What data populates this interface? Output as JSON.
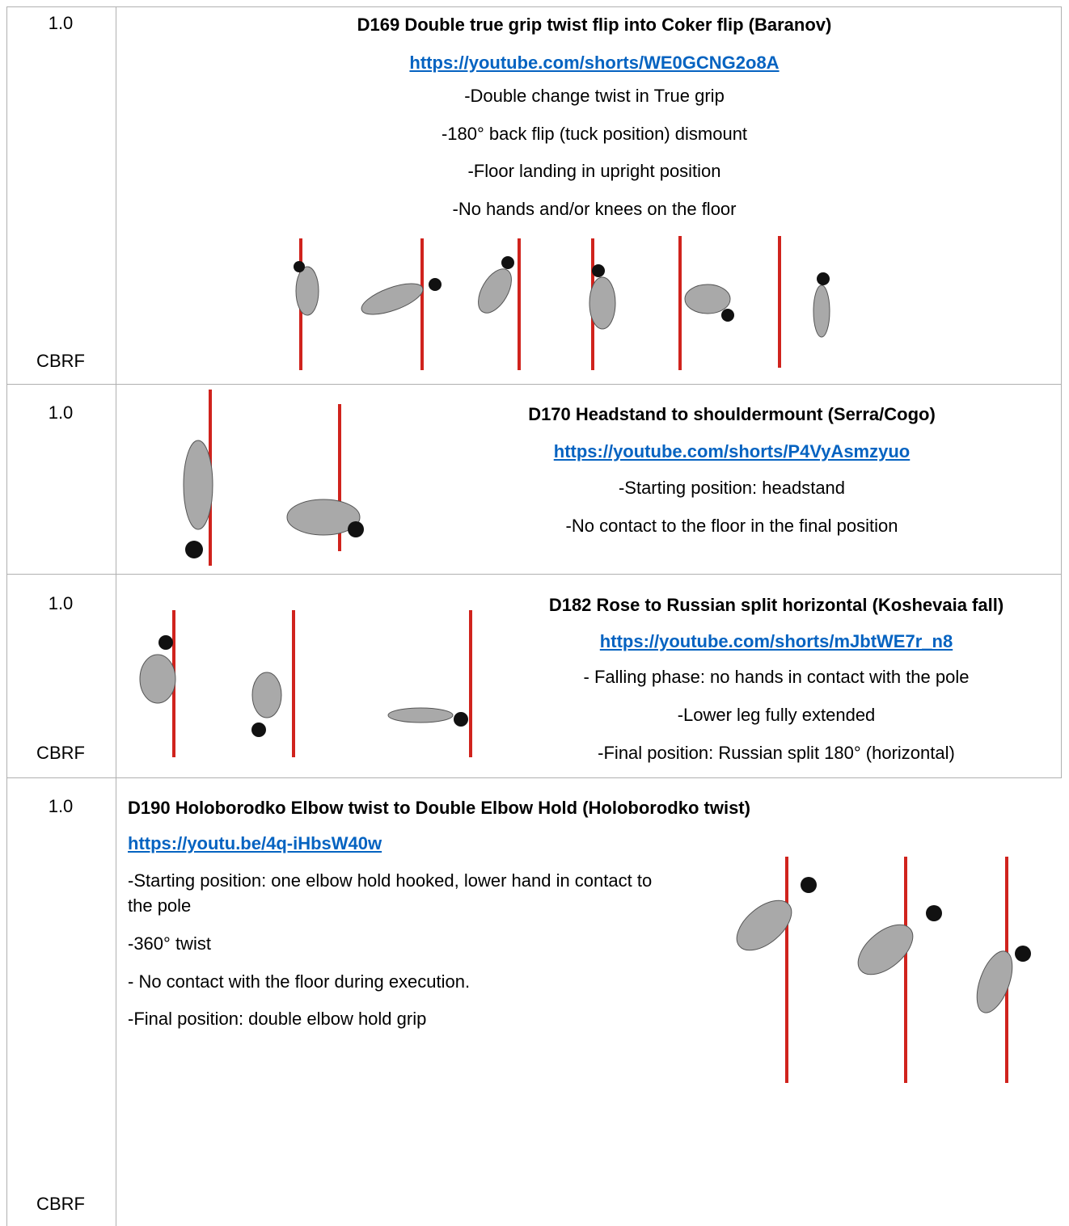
{
  "rows": [
    {
      "value": "1.0",
      "origin": "CBRF",
      "title": "D169 Double true grip twist flip into Coker flip (Baranov)",
      "link": "https://youtube.com/shorts/WE0GCNG2o8A",
      "lines": [
        "-Double change twist in True grip",
        "-180° back flip (tuck position) dismount",
        "-Floor landing in upright position",
        "-No hands and/or knees on the floor"
      ]
    },
    {
      "value": "1.0",
      "title": "D170 Headstand to shouldermount (Serra/Cogo)",
      "link": "https://youtube.com/shorts/P4VyAsmzyuo",
      "lines": [
        "-Starting position: headstand",
        "-No contact to the floor in the final position"
      ]
    },
    {
      "value": "1.0",
      "origin": "CBRF",
      "title": "D182 Rose to Russian split horizontal (Koshevaia fall)",
      "link": "https://youtube.com/shorts/mJbtWE7r_n8",
      "lines": [
        "- Falling phase: no hands in contact with the pole",
        "-Lower leg fully extended",
        "-Final position: Russian split 180° (horizontal)"
      ]
    },
    {
      "value": "1.0",
      "origin": "CBRF",
      "title": "D190 Holoborodko Elbow twist to Double Elbow Hold  (Holoborodko twist)",
      "link": "https://youtu.be/4q-iHbsW40w",
      "lines": [
        "-Starting position: one elbow hold hooked, lower hand in contact to the pole",
        "-360° twist",
        "- No contact with the floor during execution.",
        "-Final position: double elbow hold grip"
      ]
    }
  ]
}
